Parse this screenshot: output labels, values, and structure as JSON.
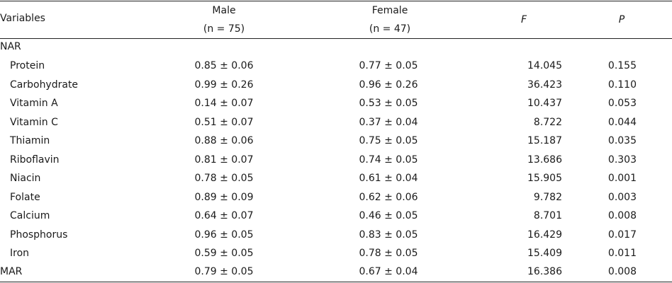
{
  "table": {
    "header": {
      "variables": "Variables",
      "male": "Male",
      "male_n": "(n = 75)",
      "female": "Female",
      "female_n": "(n = 47)",
      "f": "F",
      "p": "P"
    },
    "section_label": "NAR",
    "rows": [
      {
        "label": "Protein",
        "male": "0.85 ± 0.06",
        "female": "0.77 ± 0.05",
        "f": "14.045",
        "p": "0.155"
      },
      {
        "label": "Carbohydrate",
        "male": "0.99 ± 0.26",
        "female": "0.96 ± 0.26",
        "f": "36.423",
        "p": "0.110"
      },
      {
        "label": "Vitamin A",
        "male": "0.14 ± 0.07",
        "female": "0.53 ± 0.05",
        "f": "10.437",
        "p": "0.053"
      },
      {
        "label": "Vitamin C",
        "male": "0.51 ± 0.07",
        "female": "0.37 ± 0.04",
        "f": "8.722",
        "p": "0.044"
      },
      {
        "label": "Thiamin",
        "male": "0.88 ± 0.06",
        "female": "0.75 ± 0.05",
        "f": "15.187",
        "p": "0.035"
      },
      {
        "label": "Riboflavin",
        "male": "0.81 ± 0.07",
        "female": "0.74 ± 0.05",
        "f": "13.686",
        "p": "0.303"
      },
      {
        "label": "Niacin",
        "male": "0.78 ± 0.05",
        "female": "0.61 ± 0.04",
        "f": "15.905",
        "p": "0.001"
      },
      {
        "label": "Folate",
        "male": "0.89 ± 0.09",
        "female": "0.62 ± 0.06",
        "f": "9.782",
        "p": "0.003"
      },
      {
        "label": "Calcium",
        "male": "0.64 ± 0.07",
        "female": "0.46 ± 0.05",
        "f": "8.701",
        "p": "0.008"
      },
      {
        "label": "Phosphorus",
        "male": "0.96 ± 0.05",
        "female": "0.83 ± 0.05",
        "f": "16.429",
        "p": "0.017"
      },
      {
        "label": "Iron",
        "male": "0.59 ± 0.05",
        "female": "0.78 ± 0.05",
        "f": "15.409",
        "p": "0.011"
      }
    ],
    "summary_row": {
      "label": "MAR",
      "male": "0.79 ± 0.05",
      "female": "0.67 ± 0.04",
      "f": "16.386",
      "p": "0.008"
    }
  }
}
